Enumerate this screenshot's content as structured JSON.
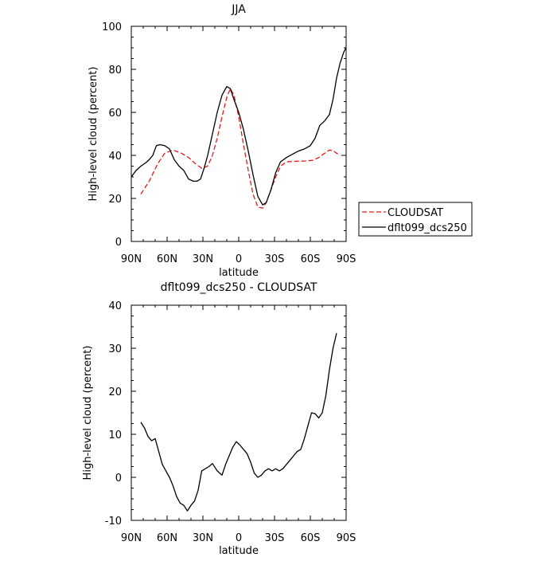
{
  "chart_data": [
    {
      "type": "line",
      "title": "JJA",
      "xlabel": "latitude",
      "ylabel": "High-level cloud (percent)",
      "xlim": [
        -90,
        90
      ],
      "ylim": [
        0,
        100
      ],
      "x_tick_labels": [
        "90N",
        "60N",
        "30N",
        "0",
        "30S",
        "60S",
        "90S"
      ],
      "y_tick_labels": [
        "0",
        "20",
        "40",
        "60",
        "80",
        "100"
      ],
      "legend_position": "right",
      "series": [
        {
          "name": "CLOUDSAT",
          "color": "#e41a1c",
          "style": "dashed",
          "x": [
            -82,
            -75,
            -68,
            -62,
            -55,
            -48,
            -42,
            -36,
            -31,
            -26,
            -22,
            -18,
            -14,
            -10,
            -7,
            -4,
            0,
            4,
            8,
            12,
            16,
            20,
            23,
            27,
            31,
            35,
            40,
            45,
            50,
            56,
            62,
            67,
            72,
            76,
            79,
            82,
            85
          ],
          "y": [
            22,
            28,
            36,
            41,
            42.5,
            41,
            39,
            36,
            34,
            35,
            40,
            48,
            58,
            67,
            71,
            68,
            58,
            45,
            33,
            22,
            16,
            15.5,
            18,
            24,
            30,
            35,
            37,
            37.2,
            37.3,
            37.4,
            37.7,
            39,
            41,
            42.5,
            42.2,
            41,
            40
          ]
        },
        {
          "name": "dflt099_dcs250",
          "color": "#000000",
          "style": "solid",
          "x": [
            -90,
            -86,
            -82,
            -78,
            -75,
            -72,
            -69,
            -66,
            -62,
            -58,
            -54,
            -50,
            -46,
            -42,
            -38,
            -35,
            -32,
            -29,
            -26,
            -22,
            -18,
            -14,
            -10,
            -7,
            -4,
            0,
            4,
            8,
            12,
            16,
            20,
            23,
            27,
            31,
            35,
            40,
            45,
            50,
            55,
            60,
            64,
            68,
            72,
            76,
            79,
            82,
            85,
            88,
            90
          ],
          "y": [
            30,
            33,
            35,
            36.5,
            38,
            40,
            44.5,
            45,
            44.5,
            43,
            38,
            35,
            33,
            29,
            28,
            28,
            29,
            34,
            40,
            50,
            60,
            68,
            72,
            71,
            66,
            60,
            52,
            42,
            31,
            21,
            17,
            18,
            24,
            32,
            37,
            39,
            40.5,
            42,
            43,
            44.5,
            48,
            54,
            56,
            59,
            66,
            76,
            83,
            88,
            90
          ]
        }
      ]
    },
    {
      "type": "line",
      "title": "dflt099_dcs250 - CLOUDSAT",
      "xlabel": "latitude",
      "ylabel": "High-level cloud (percent)",
      "xlim": [
        -90,
        90
      ],
      "ylim": [
        -10,
        40
      ],
      "x_tick_labels": [
        "90N",
        "60N",
        "30N",
        "0",
        "30S",
        "60S",
        "90S"
      ],
      "y_tick_labels": [
        "-10",
        "0",
        "10",
        "20",
        "30",
        "40"
      ],
      "series": [
        {
          "color": "#000000",
          "style": "solid",
          "x": [
            -82,
            -79,
            -76,
            -73,
            -70,
            -67,
            -64,
            -61,
            -58,
            -55,
            -52,
            -49,
            -46,
            -43,
            -40,
            -37,
            -34,
            -31,
            -28,
            -25,
            -22,
            -18,
            -14,
            -11,
            -8,
            -5,
            -2,
            1,
            4,
            7,
            10,
            13,
            16,
            19,
            22,
            25,
            28,
            31,
            34,
            37,
            40,
            43,
            46,
            49,
            52,
            55,
            58,
            61,
            64,
            67,
            70,
            73,
            76,
            79,
            82
          ],
          "y": [
            12.8,
            11.5,
            9.5,
            8.5,
            9,
            6,
            3,
            1.5,
            0,
            -2,
            -4.5,
            -6,
            -6.5,
            -7.8,
            -6.5,
            -5.5,
            -3,
            1.5,
            2,
            2.5,
            3.2,
            1.5,
            0.5,
            3,
            5,
            7,
            8.3,
            7.5,
            6.5,
            5.5,
            3.5,
            1,
            0,
            0.5,
            1.5,
            2,
            1.5,
            2,
            1.5,
            2,
            3,
            4,
            5,
            6,
            6.5,
            9,
            12,
            15,
            14.8,
            13.8,
            15,
            19,
            25,
            30,
            33.5
          ]
        }
      ]
    }
  ]
}
